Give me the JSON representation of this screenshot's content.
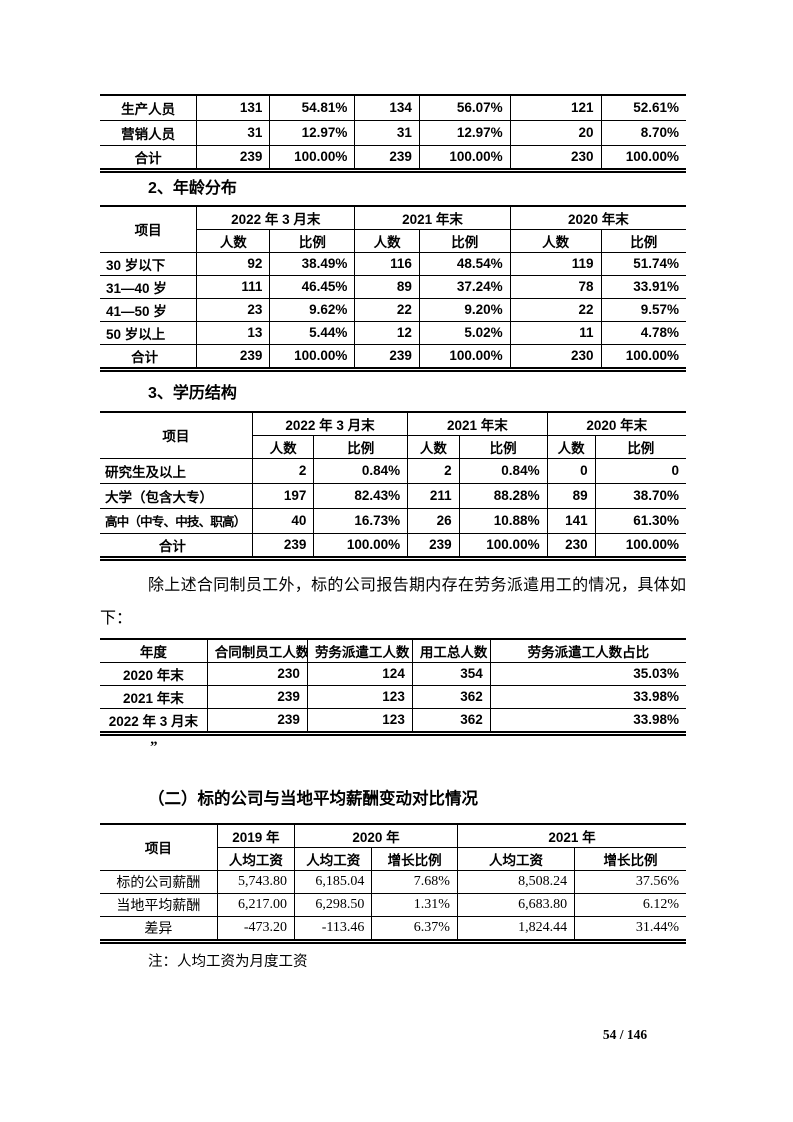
{
  "staff_table": {
    "rows": [
      [
        "生产人员",
        "131",
        "54.81%",
        "134",
        "56.07%",
        "121",
        "52.61%"
      ],
      [
        "营销人员",
        "31",
        "12.97%",
        "31",
        "12.97%",
        "20",
        "8.70%"
      ],
      [
        "合计",
        "239",
        "100.00%",
        "239",
        "100.00%",
        "230",
        "100.00%"
      ]
    ]
  },
  "age_section": {
    "heading": "2、年龄分布",
    "table": {
      "item_header": "项目",
      "col_groups": [
        "2022 年 3 月末",
        "2021 年末",
        "2020 年末"
      ],
      "sub_headers": {
        "count": "人数",
        "ratio": "比例"
      },
      "rows": [
        [
          "30 岁以下",
          "92",
          "38.49%",
          "116",
          "48.54%",
          "119",
          "51.74%"
        ],
        [
          "31—40 岁",
          "111",
          "46.45%",
          "89",
          "37.24%",
          "78",
          "33.91%"
        ],
        [
          "41—50 岁",
          "23",
          "9.62%",
          "22",
          "9.20%",
          "22",
          "9.57%"
        ],
        [
          "50 岁以上",
          "13",
          "5.44%",
          "12",
          "5.02%",
          "11",
          "4.78%"
        ],
        [
          "合计",
          "239",
          "100.00%",
          "239",
          "100.00%",
          "230",
          "100.00%"
        ]
      ]
    }
  },
  "edu_section": {
    "heading": "3、学历结构",
    "table": {
      "item_header": "项目",
      "col_groups": [
        "2022 年 3 月末",
        "2021 年末",
        "2020 年末"
      ],
      "sub_headers": {
        "count": "人数",
        "ratio": "比例"
      },
      "rows": [
        [
          "研究生及以上",
          "2",
          "0.84%",
          "2",
          "0.84%",
          "0",
          "0"
        ],
        [
          "大学（包含大专）",
          "197",
          "82.43%",
          "211",
          "88.28%",
          "89",
          "38.70%"
        ],
        [
          "高中（中专、中技、职高）",
          "40",
          "16.73%",
          "26",
          "10.88%",
          "141",
          "61.30%"
        ],
        [
          "合计",
          "239",
          "100.00%",
          "239",
          "100.00%",
          "230",
          "100.00%"
        ]
      ]
    }
  },
  "dispatch_section": {
    "paragraph": "除上述合同制员工外，标的公司报告期内存在劳务派遣用工的情况，具体如下：",
    "table": {
      "headers": [
        "年度",
        "合同制员工人数",
        "劳务派遣工人数",
        "用工总人数",
        "劳务派遣工人数占比"
      ],
      "rows": [
        [
          "2020 年末",
          "230",
          "124",
          "354",
          "35.03%"
        ],
        [
          "2021 年末",
          "239",
          "123",
          "362",
          "33.98%"
        ],
        [
          "2022 年 3 月末",
          "239",
          "123",
          "362",
          "33.98%"
        ]
      ]
    },
    "closing_quote": "”"
  },
  "salary_section": {
    "heading": "（二）标的公司与当地平均薪酬变动对比情况",
    "table": {
      "item_header": "项目",
      "col_groups": [
        "2019 年",
        "2020 年",
        "2021 年"
      ],
      "sub_headers": {
        "avg_wage": "人均工资",
        "growth": "增长比例"
      },
      "rows": [
        [
          "标的公司薪酬",
          "5,743.80",
          "6,185.04",
          "7.68%",
          "8,508.24",
          "37.56%"
        ],
        [
          "当地平均薪酬",
          "6,217.00",
          "6,298.50",
          "1.31%",
          "6,683.80",
          "6.12%"
        ],
        [
          "差异",
          "-473.20",
          "-113.46",
          "6.37%",
          "1,824.44",
          "31.44%"
        ]
      ]
    },
    "note": "注：人均工资为月度工资"
  },
  "footer": {
    "page_number": "54 / 146"
  }
}
